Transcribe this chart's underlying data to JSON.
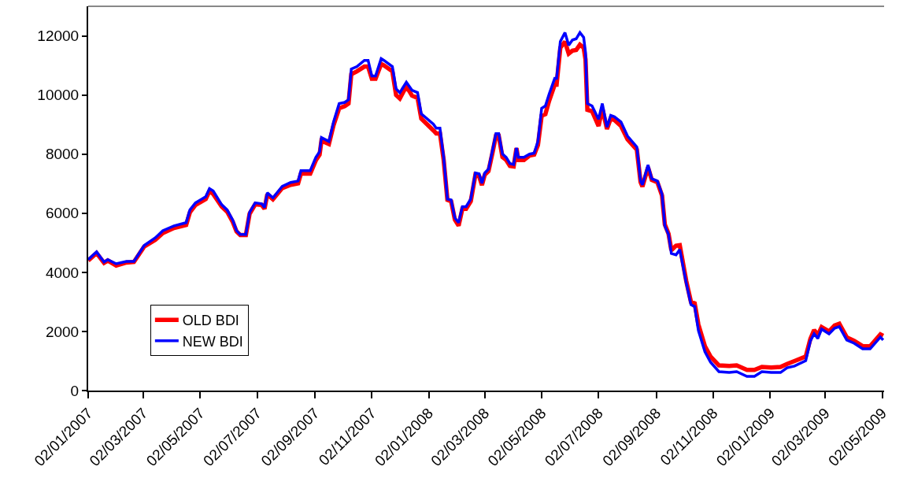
{
  "chart_data": {
    "type": "line",
    "x": [
      "2007-01-02",
      "2007-01-11",
      "2007-01-19",
      "2007-01-23",
      "2007-02-01",
      "2007-02-12",
      "2007-02-20",
      "2007-03-03",
      "2007-03-15",
      "2007-03-23",
      "2007-04-04",
      "2007-04-17",
      "2007-04-21",
      "2007-04-27",
      "2007-05-08",
      "2007-05-12",
      "2007-05-16",
      "2007-05-25",
      "2007-05-31",
      "2007-06-06",
      "2007-06-10",
      "2007-06-14",
      "2007-06-20",
      "2007-06-24",
      "2007-06-30",
      "2007-07-07",
      "2007-07-10",
      "2007-07-13",
      "2007-07-19",
      "2007-07-29",
      "2007-08-07",
      "2007-08-15",
      "2007-08-18",
      "2007-08-28",
      "2007-09-03",
      "2007-09-07",
      "2007-09-09",
      "2007-09-17",
      "2007-09-22",
      "2007-09-28",
      "2007-10-04",
      "2007-10-08",
      "2007-10-11",
      "2007-10-17",
      "2007-10-25",
      "2007-10-29",
      "2007-11-02",
      "2007-11-06",
      "2007-11-12",
      "2007-11-15",
      "2007-11-24",
      "2007-11-28",
      "2007-12-02",
      "2007-12-09",
      "2007-12-15",
      "2007-12-21",
      "2007-12-25",
      "2008-01-07",
      "2008-01-10",
      "2008-01-14",
      "2008-01-18",
      "2008-01-22",
      "2008-01-26",
      "2008-01-30",
      "2008-02-03",
      "2008-02-07",
      "2008-02-11",
      "2008-02-16",
      "2008-02-21",
      "2008-02-25",
      "2008-02-28",
      "2008-03-02",
      "2008-03-06",
      "2008-03-10",
      "2008-03-14",
      "2008-03-17",
      "2008-03-21",
      "2008-03-25",
      "2008-03-29",
      "2008-04-02",
      "2008-04-05",
      "2008-04-07",
      "2008-04-13",
      "2008-04-19",
      "2008-04-24",
      "2008-04-28",
      "2008-05-02",
      "2008-05-06",
      "2008-05-10",
      "2008-05-16",
      "2008-05-18",
      "2008-05-22",
      "2008-05-27",
      "2008-05-31",
      "2008-06-04",
      "2008-06-08",
      "2008-06-12",
      "2008-06-16",
      "2008-06-18",
      "2008-06-20",
      "2008-06-25",
      "2008-07-02",
      "2008-07-06",
      "2008-07-11",
      "2008-07-15",
      "2008-07-19",
      "2008-07-26",
      "2008-08-02",
      "2008-08-12",
      "2008-08-16",
      "2008-08-18",
      "2008-08-24",
      "2008-08-28",
      "2008-09-03",
      "2008-09-08",
      "2008-09-11",
      "2008-09-15",
      "2008-09-18",
      "2008-09-23",
      "2008-09-27",
      "2008-10-04",
      "2008-10-09",
      "2008-10-13",
      "2008-10-17",
      "2008-10-24",
      "2008-10-30",
      "2008-11-08",
      "2008-11-19",
      "2008-11-27",
      "2008-12-08",
      "2008-12-16",
      "2008-12-24",
      "2009-01-03",
      "2009-01-13",
      "2009-01-20",
      "2009-01-28",
      "2009-02-09",
      "2009-02-14",
      "2009-02-18",
      "2009-02-22",
      "2009-02-26",
      "2009-03-06",
      "2009-03-12",
      "2009-03-17",
      "2009-03-25",
      "2009-04-02",
      "2009-04-11",
      "2009-04-19",
      "2009-04-30",
      "2009-05-03"
    ],
    "series": [
      {
        "name": "OLD BDI",
        "color": "#ff0000",
        "values": [
          4400,
          4650,
          4320,
          4400,
          4230,
          4330,
          4350,
          4870,
          5100,
          5330,
          5500,
          5600,
          6030,
          6280,
          6480,
          6750,
          6650,
          6230,
          6050,
          5700,
          5380,
          5260,
          5260,
          5980,
          6300,
          6280,
          6150,
          6640,
          6470,
          6850,
          6960,
          7010,
          7340,
          7340,
          7790,
          7980,
          8450,
          8340,
          8980,
          9550,
          9620,
          9710,
          10700,
          10800,
          10960,
          10960,
          10550,
          10550,
          11050,
          11000,
          10800,
          10000,
          9880,
          10300,
          9980,
          9900,
          9200,
          8800,
          8700,
          8700,
          7800,
          6450,
          6400,
          5780,
          5580,
          6150,
          6150,
          6400,
          7300,
          7250,
          6950,
          7300,
          7420,
          8000,
          8620,
          8620,
          7900,
          7800,
          7600,
          7580,
          8200,
          7800,
          7800,
          7950,
          7980,
          8300,
          9300,
          9350,
          9800,
          10350,
          10350,
          11600,
          11800,
          11400,
          11500,
          11520,
          11700,
          11600,
          11200,
          9500,
          9450,
          8950,
          9550,
          8850,
          9200,
          9150,
          8950,
          8500,
          8150,
          7050,
          6900,
          7550,
          7130,
          7050,
          6600,
          5620,
          5300,
          4750,
          4900,
          4920,
          3700,
          3000,
          2950,
          2230,
          1500,
          1150,
          850,
          830,
          850,
          700,
          700,
          800,
          780,
          800,
          900,
          1000,
          1150,
          1750,
          2050,
          1880,
          2150,
          2000,
          2200,
          2260,
          1800,
          1680,
          1500,
          1500,
          1900,
          1850
        ]
      },
      {
        "name": "NEW BDI",
        "color": "#0000ff",
        "values": [
          4430,
          4690,
          4350,
          4430,
          4290,
          4370,
          4370,
          4910,
          5170,
          5410,
          5570,
          5680,
          6110,
          6350,
          6560,
          6830,
          6750,
          6290,
          6110,
          5760,
          5410,
          5280,
          5280,
          6030,
          6350,
          6320,
          6190,
          6690,
          6520,
          6910,
          7040,
          7090,
          7440,
          7440,
          7890,
          8080,
          8560,
          8430,
          9090,
          9710,
          9750,
          9840,
          10880,
          10960,
          11170,
          11170,
          10640,
          10640,
          11230,
          11170,
          10960,
          10210,
          10080,
          10430,
          10160,
          10080,
          9360,
          9010,
          8880,
          8880,
          7890,
          6480,
          6450,
          5840,
          5680,
          6220,
          6220,
          6480,
          7360,
          7330,
          7010,
          7360,
          7490,
          8080,
          8690,
          8690,
          8000,
          7890,
          7680,
          7650,
          8210,
          7890,
          7890,
          8000,
          8030,
          8430,
          9550,
          9630,
          10030,
          10560,
          10560,
          11810,
          12110,
          11680,
          11860,
          11900,
          12110,
          11950,
          11440,
          9710,
          9630,
          9180,
          9710,
          8910,
          9310,
          9260,
          9090,
          8610,
          8240,
          7090,
          6960,
          7630,
          7170,
          7090,
          6640,
          5570,
          5280,
          4640,
          4590,
          4770,
          3630,
          2910,
          2840,
          2030,
          1310,
          960,
          640,
          610,
          640,
          480,
          480,
          640,
          610,
          610,
          770,
          830,
          1010,
          1680,
          1920,
          1760,
          2080,
          1920,
          2110,
          2160,
          1710,
          1600,
          1410,
          1410,
          1810,
          1710
        ]
      }
    ],
    "xlim": [
      "2007-01-02",
      "2009-05-04"
    ],
    "xticks": [
      {
        "value": "2007-01-02",
        "label": "02/01/2007"
      },
      {
        "value": "2007-03-02",
        "label": "02/03/2007"
      },
      {
        "value": "2007-05-02",
        "label": "02/05/2007"
      },
      {
        "value": "2007-07-02",
        "label": "02/07/2007"
      },
      {
        "value": "2007-09-02",
        "label": "02/09/2007"
      },
      {
        "value": "2007-11-02",
        "label": "02/11/2007"
      },
      {
        "value": "2008-01-02",
        "label": "02/01/2008"
      },
      {
        "value": "2008-03-02",
        "label": "02/03/2008"
      },
      {
        "value": "2008-05-02",
        "label": "02/05/2008"
      },
      {
        "value": "2008-07-02",
        "label": "02/07/2008"
      },
      {
        "value": "2008-09-02",
        "label": "02/09/2008"
      },
      {
        "value": "2008-11-02",
        "label": "02/11/2008"
      },
      {
        "value": "2009-01-02",
        "label": "02/01/2009"
      },
      {
        "value": "2009-03-02",
        "label": "02/03/2009"
      },
      {
        "value": "2009-05-02",
        "label": "02/05/2009"
      }
    ],
    "ylim": [
      0,
      13000
    ],
    "yticks": [
      0,
      2000,
      4000,
      6000,
      8000,
      10000,
      12000
    ],
    "grid": false,
    "legend": "bottom left",
    "marker": "none",
    "line_style": "solid"
  }
}
